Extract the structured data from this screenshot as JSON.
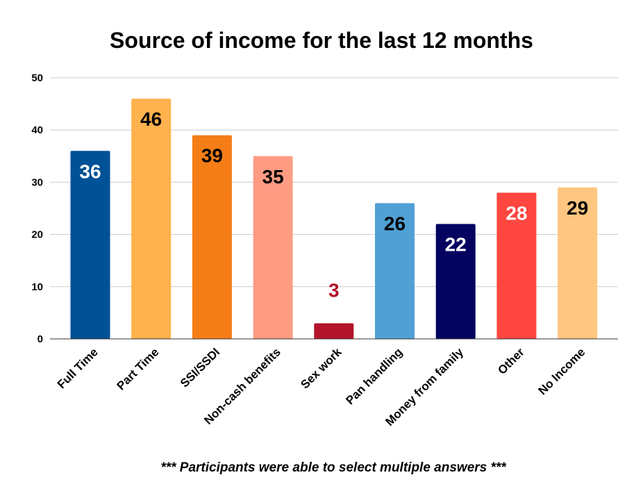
{
  "chart_data": {
    "type": "bar",
    "title": "Source of income for the last 12 months",
    "xlabel": "",
    "ylabel": "",
    "ylim": [
      0,
      50
    ],
    "yticks": [
      0,
      10,
      20,
      30,
      40,
      50
    ],
    "grid": true,
    "legend": "none",
    "categories": [
      "Full Time",
      "Part Time",
      "SSI/SSDI",
      "Non-cash benefits",
      "Sex work",
      "Pan handling",
      "Money from family",
      "Other",
      "No Income"
    ],
    "values": [
      36,
      46,
      39,
      35,
      3,
      26,
      22,
      28,
      29
    ],
    "data_labels": [
      "36",
      "46",
      "39",
      "35",
      "3",
      "26",
      "22",
      "28",
      "29"
    ],
    "bar_colors": [
      "#005195",
      "#ffb24d",
      "#f57d17",
      "#ff9b83",
      "#b3142b",
      "#51a0d5",
      "#040460",
      "#ff4640",
      "#ffc681"
    ],
    "label_colors": [
      "#ffffff",
      "#000000",
      "#000000",
      "#000000",
      "#b3142b",
      "#000000",
      "#ffffff",
      "#ffffff",
      "#000000"
    ],
    "label_position": [
      "inside",
      "inside",
      "inside",
      "inside",
      "above",
      "inside",
      "inside",
      "inside",
      "inside"
    ],
    "footnote": "*** Participants were able to select multiple answers ***"
  }
}
